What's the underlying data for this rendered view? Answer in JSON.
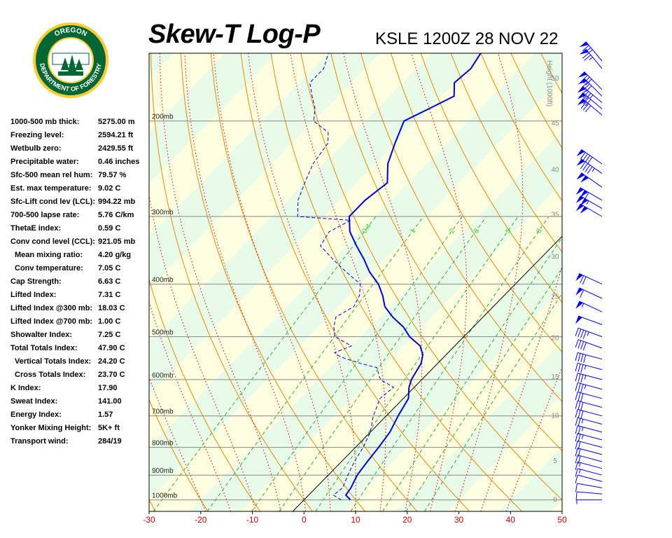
{
  "header": {
    "title": "Skew-T Log-P",
    "station": "KSLE 1200Z 28 NOV 22"
  },
  "logo": {
    "top_text": "OREGON",
    "ring_text": "DEPARTMENT OF FORESTRY",
    "colors": {
      "ring": "#006633",
      "gold": "#ffcc33"
    }
  },
  "indices": [
    {
      "label": "1000-500 mb thick:",
      "value": "5275.00 m",
      "indent": false
    },
    {
      "label": "Freezing level:",
      "value": "2594.21 ft",
      "indent": false
    },
    {
      "label": "Wetbulb zero:",
      "value": "2429.55 ft",
      "indent": false
    },
    {
      "label": "Precipitable water:",
      "value": "0.46 inches",
      "indent": false
    },
    {
      "label": "Sfc-500 mean rel hum:",
      "value": "79.57 %",
      "indent": false
    },
    {
      "label": "Est. max temperature:",
      "value": "9.02 C",
      "indent": false
    },
    {
      "label": "Sfc-Lift cond lev (LCL):",
      "value": "994.22 mb",
      "indent": false
    },
    {
      "label": "700-500 lapse rate:",
      "value": "5.76 C/km",
      "indent": false
    },
    {
      "label": "ThetaE index:",
      "value": "0.59 C",
      "indent": false
    },
    {
      "label": "Conv cond level (CCL):",
      "value": "921.05 mb",
      "indent": false
    },
    {
      "label": "Mean mixing ratio:",
      "value": "4.20 g/kg",
      "indent": true
    },
    {
      "label": "Conv temperature:",
      "value": "7.05 C",
      "indent": true
    },
    {
      "label": "Cap Strength:",
      "value": "6.63 C",
      "indent": false
    },
    {
      "label": "Lifted Index:",
      "value": "7.31 C",
      "indent": false
    },
    {
      "label": "Lifted Index @300 mb:",
      "value": "18.03 C",
      "indent": false
    },
    {
      "label": "Lifted Index @700 mb:",
      "value": "1.00 C",
      "indent": false
    },
    {
      "label": "Showalter Index:",
      "value": "7.25 C",
      "indent": false
    },
    {
      "label": "Total Totals Index:",
      "value": "47.90 C",
      "indent": false
    },
    {
      "label": "Vertical Totals Index:",
      "value": "24.20 C",
      "indent": true
    },
    {
      "label": "Cross Totals Index:",
      "value": "23.70 C",
      "indent": true
    },
    {
      "label": "K Index:",
      "value": "17.90",
      "indent": false
    },
    {
      "label": "Sweat Index:",
      "value": "141.00",
      "indent": false
    },
    {
      "label": "Energy Index:",
      "value": "1.57",
      "indent": false
    },
    {
      "label": "Yonker Mixing Height:",
      "value": "5K+ ft",
      "indent": false
    },
    {
      "label": "Transport wind:",
      "value": "284/19",
      "indent": false
    }
  ],
  "chart_data": {
    "type": "line",
    "xlim": [
      -30,
      50
    ],
    "plim": [
      1050,
      150
    ],
    "x_ticks": [
      -30,
      -20,
      -10,
      0,
      10,
      20,
      30,
      40,
      50
    ],
    "x_tick_labels": [
      "-30",
      "-20",
      "-10",
      "0",
      "10",
      "20",
      "30",
      "40",
      "50"
    ],
    "pressure_levels": [
      1000,
      900,
      800,
      700,
      600,
      500,
      400,
      300,
      200
    ],
    "pressure_labels": [
      "1000mb",
      "900mb",
      "800mb",
      "700mb",
      "600mb",
      "500mb",
      "400mb",
      "300mb",
      "200mb"
    ],
    "height_axis_label": "Height (1000ft)",
    "height_ticks": [
      {
        "label": "0",
        "p": 1000
      },
      {
        "label": "5",
        "p": 847
      },
      {
        "label": "10",
        "p": 700
      },
      {
        "label": "15",
        "p": 593
      },
      {
        "label": "20",
        "p": 503
      },
      {
        "label": "25",
        "p": 422
      },
      {
        "label": "30",
        "p": 356
      },
      {
        "label": "35",
        "p": 298
      },
      {
        "label": "40",
        "p": 246
      },
      {
        "label": "45",
        "p": 202
      },
      {
        "label": "50",
        "p": 167
      }
    ],
    "mixing_ratio_labels": [
      "0.4",
      "1",
      "2",
      "3",
      "5",
      "8"
    ],
    "series": [
      {
        "color": "#0000cc",
        "style": "solid",
        "points": [
          [
            1000,
            9
          ],
          [
            980,
            7.2
          ],
          [
            950,
            6.8
          ],
          [
            900,
            5.6
          ],
          [
            850,
            5.0
          ],
          [
            800,
            4.5
          ],
          [
            750,
            3.8
          ],
          [
            700,
            2.3
          ],
          [
            650,
            1.0
          ],
          [
            620,
            -1.0
          ],
          [
            600,
            -2.0
          ],
          [
            580,
            -2.6
          ],
          [
            560,
            -3.2
          ],
          [
            540,
            -4.5
          ],
          [
            520,
            -6.7
          ],
          [
            500,
            -10.5
          ],
          [
            480,
            -13.5
          ],
          [
            460,
            -17.5
          ],
          [
            440,
            -21.0
          ],
          [
            420,
            -23.5
          ],
          [
            400,
            -26.5
          ],
          [
            380,
            -30.5
          ],
          [
            360,
            -34.0
          ],
          [
            340,
            -38.0
          ],
          [
            320,
            -42.0
          ],
          [
            300,
            -45.0
          ],
          [
            280,
            -45.0
          ],
          [
            260,
            -44.0
          ],
          [
            240,
            -47.5
          ],
          [
            220,
            -50.0
          ],
          [
            200,
            -52.5
          ],
          [
            190,
            -50.0
          ],
          [
            180,
            -47.5
          ],
          [
            170,
            -50.0
          ],
          [
            160,
            -49.5
          ],
          [
            150,
            -50.5
          ]
        ]
      },
      {
        "color": "#0000cc",
        "style": "dashed",
        "points": [
          [
            1000,
            7.2
          ],
          [
            980,
            4.8
          ],
          [
            950,
            5.2
          ],
          [
            900,
            3.8
          ],
          [
            850,
            2.5
          ],
          [
            800,
            1.5
          ],
          [
            750,
            0.0
          ],
          [
            700,
            -2.5
          ],
          [
            650,
            -4.5
          ],
          [
            620,
            -4.0
          ],
          [
            600,
            -8.0
          ],
          [
            590,
            -9.0
          ],
          [
            570,
            -11.0
          ],
          [
            560,
            -15.0
          ],
          [
            545,
            -20.0
          ],
          [
            535,
            -22.0
          ],
          [
            520,
            -20.0
          ],
          [
            500,
            -25.0
          ],
          [
            480,
            -27.0
          ],
          [
            460,
            -28.5
          ],
          [
            440,
            -27.0
          ],
          [
            420,
            -28.0
          ],
          [
            400,
            -30.0
          ],
          [
            380,
            -35.0
          ],
          [
            360,
            -40.0
          ],
          [
            340,
            -45.0
          ],
          [
            320,
            -46.0
          ],
          [
            305,
            -44.0
          ],
          [
            300,
            -55.0
          ],
          [
            280,
            -58.0
          ],
          [
            260,
            -60.0
          ],
          [
            240,
            -62.0
          ],
          [
            220,
            -63.0
          ],
          [
            210,
            -65.0
          ],
          [
            200,
            -70.0
          ],
          [
            190,
            -72.0
          ],
          [
            180,
            -75.0
          ],
          [
            170,
            -78.0
          ],
          [
            160,
            -78.0
          ],
          [
            150,
            -80.0
          ]
        ]
      }
    ],
    "wind_barbs": [
      {
        "p": 1000,
        "dir": 270,
        "spd": 5
      },
      {
        "p": 975,
        "dir": 275,
        "spd": 10
      },
      {
        "p": 950,
        "dir": 280,
        "spd": 10
      },
      {
        "p": 925,
        "dir": 285,
        "spd": 10
      },
      {
        "p": 900,
        "dir": 285,
        "spd": 15
      },
      {
        "p": 875,
        "dir": 285,
        "spd": 15
      },
      {
        "p": 850,
        "dir": 285,
        "spd": 20
      },
      {
        "p": 825,
        "dir": 285,
        "spd": 20
      },
      {
        "p": 800,
        "dir": 285,
        "spd": 20
      },
      {
        "p": 775,
        "dir": 285,
        "spd": 25
      },
      {
        "p": 750,
        "dir": 285,
        "spd": 25
      },
      {
        "p": 725,
        "dir": 285,
        "spd": 25
      },
      {
        "p": 700,
        "dir": 285,
        "spd": 30
      },
      {
        "p": 675,
        "dir": 285,
        "spd": 30
      },
      {
        "p": 650,
        "dir": 285,
        "spd": 30
      },
      {
        "p": 625,
        "dir": 285,
        "spd": 35
      },
      {
        "p": 600,
        "dir": 285,
        "spd": 35
      },
      {
        "p": 575,
        "dir": 285,
        "spd": 35
      },
      {
        "p": 550,
        "dir": 285,
        "spd": 40
      },
      {
        "p": 525,
        "dir": 290,
        "spd": 40
      },
      {
        "p": 500,
        "dir": 290,
        "spd": 45
      },
      {
        "p": 475,
        "dir": 290,
        "spd": 50
      },
      {
        "p": 450,
        "dir": 295,
        "spd": 55
      },
      {
        "p": 425,
        "dir": 295,
        "spd": 60
      },
      {
        "p": 400,
        "dir": 295,
        "spd": 70
      },
      {
        "p": 300,
        "dir": 300,
        "spd": 100
      },
      {
        "p": 290,
        "dir": 300,
        "spd": 105
      },
      {
        "p": 280,
        "dir": 300,
        "spd": 110
      },
      {
        "p": 265,
        "dir": 305,
        "spd": 100
      },
      {
        "p": 250,
        "dir": 305,
        "spd": 95
      },
      {
        "p": 240,
        "dir": 305,
        "spd": 90
      },
      {
        "p": 195,
        "dir": 310,
        "spd": 80
      },
      {
        "p": 190,
        "dir": 310,
        "spd": 80
      },
      {
        "p": 185,
        "dir": 310,
        "spd": 85
      },
      {
        "p": 180,
        "dir": 315,
        "spd": 80
      },
      {
        "p": 175,
        "dir": 315,
        "spd": 80
      },
      {
        "p": 160,
        "dir": 320,
        "spd": 75
      },
      {
        "p": 155,
        "dir": 320,
        "spd": 75
      }
    ]
  },
  "colors": {
    "temp": "#0000cc",
    "dry_adiabat": "#e68a00",
    "moist_adiabat": "#cc0000",
    "mixing_ratio": "#33aa33",
    "isobar": "#888888",
    "band_green": "#e8fbe8",
    "band_yellow": "#fdfde0"
  }
}
